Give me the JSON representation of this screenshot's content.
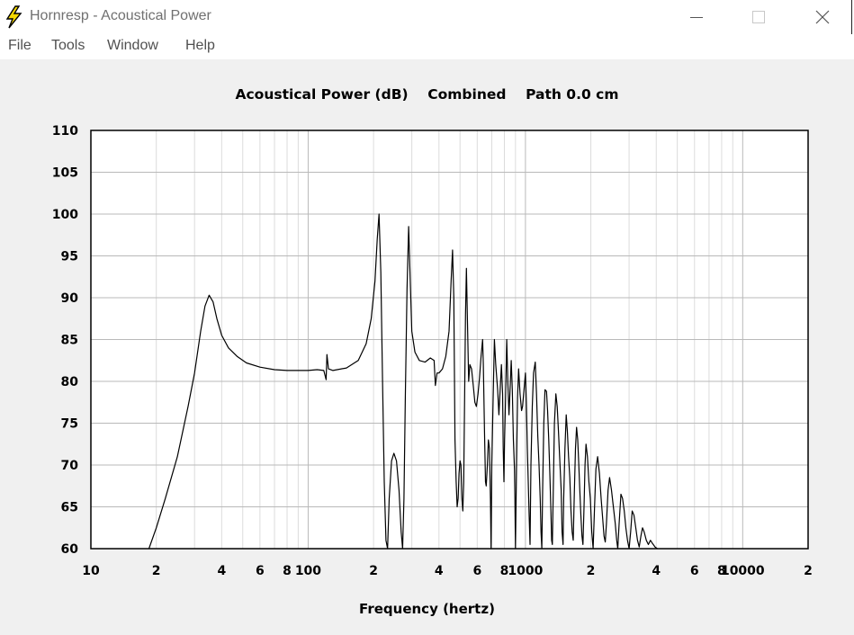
{
  "window": {
    "title": "Hornresp - Acoustical Power",
    "minimize_glyph": "minimize-icon",
    "maximize_glyph": "maximize-icon",
    "close_glyph": "close-icon"
  },
  "menu": {
    "items": [
      "File",
      "Tools",
      "Window",
      "Help"
    ]
  },
  "colors": {
    "background": "#f0f0f0",
    "plot_background": "#ffffff",
    "grid_major": "#b9b9b9",
    "grid_minor": "#dcdcdc",
    "trace": "#000000",
    "icon_yellow": "#f5d800"
  },
  "chart_data": {
    "type": "line",
    "title_parts": [
      "Acoustical Power (dB)",
      "Combined",
      "Path 0.0 cm"
    ],
    "xlabel": "Frequency (hertz)",
    "ylabel": "",
    "xscale": "log",
    "xlim": [
      10,
      20000
    ],
    "ylim": [
      60,
      110
    ],
    "yticks": [
      60,
      65,
      70,
      75,
      80,
      85,
      90,
      95,
      100,
      105,
      110
    ],
    "xtick_labels": [
      {
        "value": 10,
        "label": "10"
      },
      {
        "value": 20,
        "label": "2"
      },
      {
        "value": 40,
        "label": "4"
      },
      {
        "value": 60,
        "label": "6"
      },
      {
        "value": 80,
        "label": "8"
      },
      {
        "value": 100,
        "label": "100"
      },
      {
        "value": 200,
        "label": "2"
      },
      {
        "value": 400,
        "label": "4"
      },
      {
        "value": 600,
        "label": "6"
      },
      {
        "value": 800,
        "label": "8"
      },
      {
        "value": 1000,
        "label": "1000"
      },
      {
        "value": 2000,
        "label": "2"
      },
      {
        "value": 4000,
        "label": "4"
      },
      {
        "value": 6000,
        "label": "6"
      },
      {
        "value": 8000,
        "label": "8"
      },
      {
        "value": 10000,
        "label": "10000"
      },
      {
        "value": 20000,
        "label": "2"
      }
    ],
    "grid": true,
    "series": [
      {
        "points": [
          [
            18.5,
            60
          ],
          [
            20,
            62.5
          ],
          [
            22,
            66
          ],
          [
            25,
            71
          ],
          [
            28,
            77
          ],
          [
            30,
            81
          ],
          [
            32,
            86
          ],
          [
            33.5,
            89
          ],
          [
            35,
            90.3
          ],
          [
            36.5,
            89.5
          ],
          [
            38,
            87.5
          ],
          [
            40,
            85.5
          ],
          [
            43,
            84
          ],
          [
            47,
            83
          ],
          [
            52,
            82.2
          ],
          [
            60,
            81.7
          ],
          [
            70,
            81.4
          ],
          [
            80,
            81.3
          ],
          [
            90,
            81.3
          ],
          [
            100,
            81.3
          ],
          [
            110,
            81.4
          ],
          [
            118,
            81.3
          ],
          [
            121,
            80.2
          ],
          [
            122,
            83.2
          ],
          [
            124,
            81.5
          ],
          [
            130,
            81.3
          ],
          [
            150,
            81.6
          ],
          [
            170,
            82.5
          ],
          [
            185,
            84.5
          ],
          [
            195,
            87.5
          ],
          [
            203,
            92
          ],
          [
            208,
            97
          ],
          [
            212,
            100
          ],
          [
            216,
            93
          ],
          [
            220,
            80
          ],
          [
            224,
            68
          ],
          [
            228,
            61
          ],
          [
            232,
            60
          ],
          [
            236,
            66
          ],
          [
            242,
            70.5
          ],
          [
            248,
            71.4
          ],
          [
            255,
            70.5
          ],
          [
            262,
            67
          ],
          [
            268,
            62
          ],
          [
            272,
            60
          ],
          [
            276,
            66
          ],
          [
            280,
            78
          ],
          [
            285,
            91
          ],
          [
            290,
            98.5
          ],
          [
            295,
            92
          ],
          [
            300,
            86
          ],
          [
            310,
            83.5
          ],
          [
            325,
            82.5
          ],
          [
            345,
            82.3
          ],
          [
            365,
            82.8
          ],
          [
            380,
            82.5
          ],
          [
            385,
            79.5
          ],
          [
            392,
            81
          ],
          [
            400,
            81
          ],
          [
            415,
            81.5
          ],
          [
            430,
            83
          ],
          [
            445,
            86
          ],
          [
            455,
            92
          ],
          [
            462,
            95.7
          ],
          [
            468,
            90
          ],
          [
            474,
            73
          ],
          [
            480,
            68
          ],
          [
            485,
            65
          ],
          [
            490,
            66
          ],
          [
            495,
            69
          ],
          [
            500,
            70.5
          ],
          [
            505,
            70
          ],
          [
            510,
            66
          ],
          [
            515,
            64.5
          ],
          [
            520,
            68
          ],
          [
            525,
            78
          ],
          [
            530,
            88
          ],
          [
            535,
            93.5
          ],
          [
            540,
            88
          ],
          [
            548,
            80
          ],
          [
            555,
            82
          ],
          [
            565,
            81.5
          ],
          [
            575,
            79.5
          ],
          [
            585,
            77.5
          ],
          [
            595,
            77
          ],
          [
            605,
            78.5
          ],
          [
            615,
            80.5
          ],
          [
            625,
            83
          ],
          [
            635,
            85
          ],
          [
            640,
            82
          ],
          [
            648,
            74
          ],
          [
            655,
            68
          ],
          [
            660,
            67.5
          ],
          [
            668,
            70
          ],
          [
            675,
            73
          ],
          [
            683,
            72
          ],
          [
            690,
            66
          ],
          [
            695,
            60
          ],
          [
            700,
            70
          ],
          [
            710,
            78
          ],
          [
            720,
            85
          ],
          [
            730,
            82
          ],
          [
            745,
            79
          ],
          [
            755,
            76
          ],
          [
            765,
            79
          ],
          [
            775,
            82
          ],
          [
            785,
            78.5
          ],
          [
            790,
            72
          ],
          [
            796,
            68
          ],
          [
            802,
            73
          ],
          [
            810,
            78
          ],
          [
            820,
            85
          ],
          [
            830,
            80
          ],
          [
            840,
            76
          ],
          [
            850,
            79
          ],
          [
            860,
            82.5
          ],
          [
            870,
            79
          ],
          [
            880,
            73
          ],
          [
            890,
            69.5
          ],
          [
            895,
            66
          ],
          [
            900,
            60
          ],
          [
            910,
            70
          ],
          [
            920,
            78
          ],
          [
            930,
            81.5
          ],
          [
            945,
            78.5
          ],
          [
            960,
            76.5
          ],
          [
            970,
            77
          ],
          [
            985,
            79
          ],
          [
            1000,
            81
          ],
          [
            1010,
            77.5
          ],
          [
            1020,
            72
          ],
          [
            1030,
            68
          ],
          [
            1040,
            64
          ],
          [
            1050,
            60.5
          ],
          [
            1060,
            70
          ],
          [
            1075,
            77
          ],
          [
            1090,
            81
          ],
          [
            1110,
            82.3
          ],
          [
            1125,
            78.5
          ],
          [
            1140,
            73.5
          ],
          [
            1155,
            70
          ],
          [
            1170,
            66
          ],
          [
            1180,
            62
          ],
          [
            1190,
            60
          ],
          [
            1200,
            67
          ],
          [
            1215,
            75
          ],
          [
            1230,
            79
          ],
          [
            1250,
            78.8
          ],
          [
            1265,
            76.5
          ],
          [
            1280,
            73
          ],
          [
            1295,
            69
          ],
          [
            1310,
            64.5
          ],
          [
            1320,
            61
          ],
          [
            1330,
            60.5
          ],
          [
            1345,
            68
          ],
          [
            1360,
            75
          ],
          [
            1380,
            78.5
          ],
          [
            1400,
            77
          ],
          [
            1420,
            74
          ],
          [
            1440,
            70.5
          ],
          [
            1460,
            67
          ],
          [
            1475,
            62
          ],
          [
            1490,
            60.5
          ],
          [
            1500,
            66
          ],
          [
            1520,
            72
          ],
          [
            1540,
            76
          ],
          [
            1560,
            74
          ],
          [
            1580,
            71
          ],
          [
            1600,
            68.5
          ],
          [
            1620,
            64.5
          ],
          [
            1640,
            62
          ],
          [
            1660,
            61
          ],
          [
            1680,
            67
          ],
          [
            1700,
            72
          ],
          [
            1720,
            74.5
          ],
          [
            1740,
            73
          ],
          [
            1760,
            70
          ],
          [
            1780,
            67
          ],
          [
            1800,
            64
          ],
          [
            1820,
            61.5
          ],
          [
            1840,
            60.5
          ],
          [
            1860,
            65
          ],
          [
            1880,
            70
          ],
          [
            1900,
            72.5
          ],
          [
            1930,
            71
          ],
          [
            1960,
            68
          ],
          [
            1990,
            66
          ],
          [
            2020,
            62
          ],
          [
            2050,
            60
          ],
          [
            2080,
            65
          ],
          [
            2110,
            69.5
          ],
          [
            2150,
            71
          ],
          [
            2190,
            69
          ],
          [
            2230,
            66
          ],
          [
            2270,
            63.5
          ],
          [
            2300,
            61.5
          ],
          [
            2330,
            60.8
          ],
          [
            2360,
            63
          ],
          [
            2400,
            67
          ],
          [
            2440,
            68.5
          ],
          [
            2490,
            67
          ],
          [
            2540,
            65
          ],
          [
            2590,
            63
          ],
          [
            2630,
            61
          ],
          [
            2660,
            60
          ],
          [
            2700,
            63
          ],
          [
            2750,
            66.5
          ],
          [
            2800,
            66
          ],
          [
            2850,
            64.5
          ],
          [
            2900,
            62.5
          ],
          [
            2950,
            61
          ],
          [
            3000,
            60
          ],
          [
            3050,
            62
          ],
          [
            3100,
            64.5
          ],
          [
            3160,
            64
          ],
          [
            3220,
            62.5
          ],
          [
            3280,
            61
          ],
          [
            3340,
            60.2
          ],
          [
            3400,
            61.5
          ],
          [
            3460,
            62.5
          ],
          [
            3520,
            62
          ],
          [
            3600,
            61
          ],
          [
            3680,
            60.5
          ],
          [
            3760,
            61
          ],
          [
            3850,
            60.6
          ],
          [
            3950,
            60.2
          ],
          [
            4050,
            60
          ]
        ]
      }
    ]
  }
}
